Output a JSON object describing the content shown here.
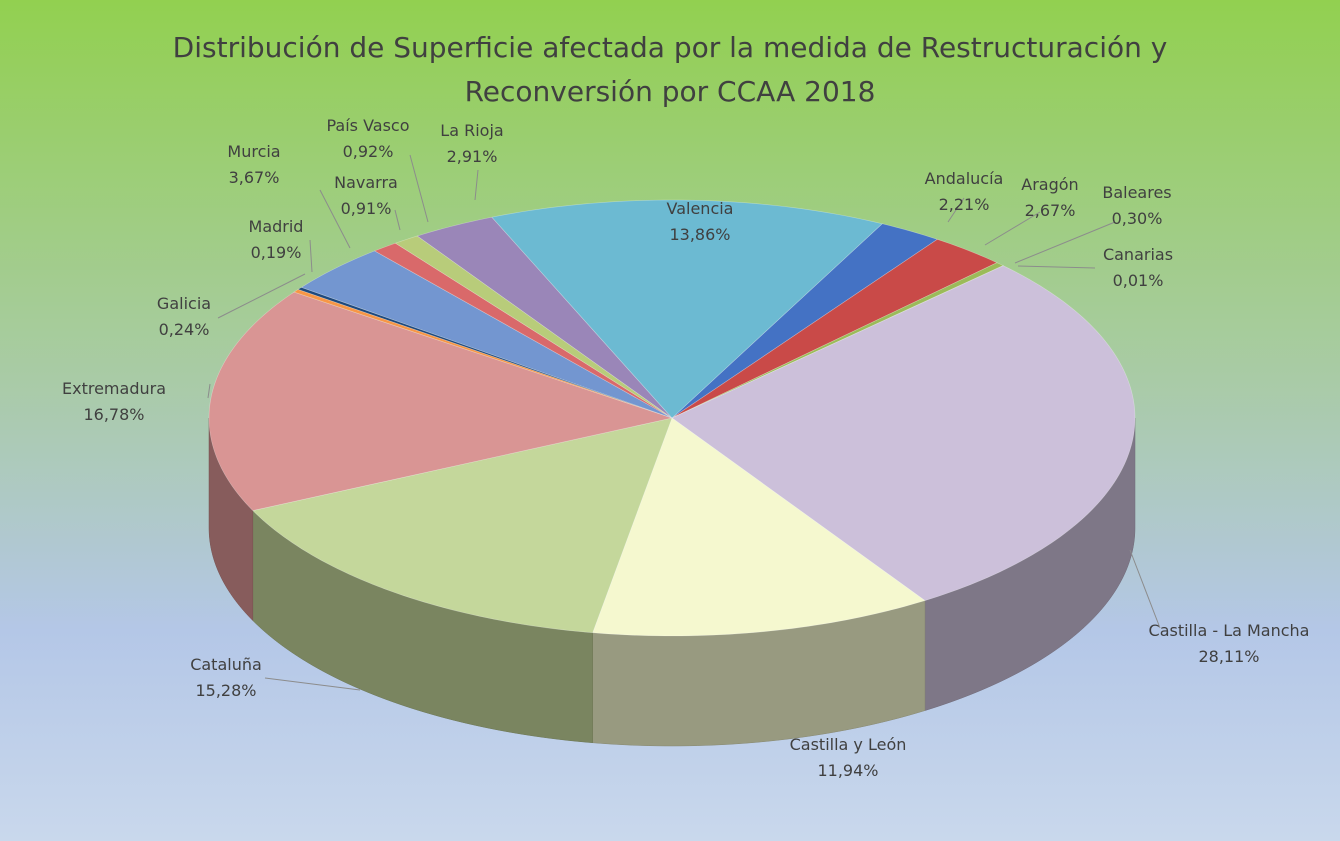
{
  "chart_data": {
    "type": "pie3d",
    "title": "Distribución de Superficie afectada por la medida de Restructuración y Reconversión por CCAA 2018",
    "categories": [
      "Andalucía",
      "Aragón",
      "Baleares",
      "Canarias",
      "Castilla - La Mancha",
      "Castilla y León",
      "Cataluña",
      "Extremadura",
      "Galicia",
      "Madrid",
      "Murcia",
      "Navarra",
      "País Vasco",
      "La Rioja",
      "Valencia"
    ],
    "values": [
      2.21,
      2.67,
      0.3,
      0.01,
      28.11,
      11.94,
      15.28,
      16.78,
      0.24,
      0.19,
      3.67,
      0.91,
      0.92,
      2.91,
      13.86
    ],
    "value_labels": [
      "2,21%",
      "2,67%",
      "0,30%",
      "0,01%",
      "28,11%",
      "11,94%",
      "15,28%",
      "16,78%",
      "0,24%",
      "0,19%",
      "3,67%",
      "0,91%",
      "0,92%",
      "2,91%",
      "13,86%"
    ],
    "colors": [
      "#4472c4",
      "#c94a48",
      "#9bbb59",
      "#8064a2",
      "#ccc0da",
      "#f5f8cf",
      "#c4d79b",
      "#d99594",
      "#f79646",
      "#1f497d",
      "#7396d0",
      "#d9696a",
      "#b8cc7a",
      "#9a86b8",
      "#6cbad2"
    ]
  }
}
